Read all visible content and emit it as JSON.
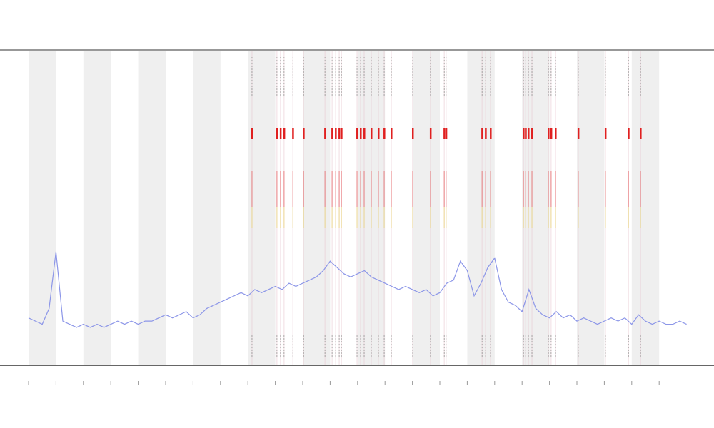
{
  "chart_data": {
    "type": "line",
    "x": [
      0,
      0.25,
      0.5,
      0.75,
      1,
      1.25,
      1.5,
      1.75,
      2,
      2.25,
      2.5,
      2.75,
      3,
      3.25,
      3.5,
      3.75,
      4,
      4.25,
      4.5,
      4.75,
      5,
      5.25,
      5.5,
      5.75,
      6,
      6.25,
      6.5,
      6.75,
      7,
      7.25,
      7.5,
      7.75,
      8,
      8.25,
      8.5,
      8.75,
      9,
      9.25,
      9.5,
      9.75,
      10,
      10.25,
      10.5,
      10.75,
      11,
      11.25,
      11.5,
      11.75,
      12,
      12.25,
      12.5,
      12.75,
      13,
      13.25,
      13.5,
      13.75,
      14,
      14.25,
      14.5,
      14.75,
      15,
      15.25,
      15.5,
      15.75,
      16,
      16.25,
      16.5,
      16.75,
      17,
      17.25,
      17.5,
      17.75,
      18,
      18.25,
      18.5,
      18.75,
      19,
      19.25,
      19.5,
      19.75,
      20,
      20.25,
      20.5,
      20.75,
      21,
      21.25,
      21.5,
      21.75,
      22,
      22.25,
      22.5,
      22.75,
      23,
      23.25,
      23.5,
      23.75,
      24
    ],
    "series": [
      {
        "color": "#8c96e8",
        "values": [
          15,
          14,
          13,
          18,
          36,
          14,
          13,
          12,
          13,
          12,
          13,
          12,
          13,
          14,
          13,
          14,
          13,
          14,
          14,
          15,
          16,
          15,
          16,
          17,
          15,
          16,
          18,
          19,
          20,
          21,
          22,
          23,
          22,
          24,
          23,
          24,
          25,
          24,
          26,
          25,
          26,
          27,
          28,
          30,
          33,
          31,
          29,
          28,
          29,
          30,
          28,
          27,
          26,
          25,
          24,
          25,
          24,
          23,
          24,
          22,
          23,
          26,
          27,
          33,
          30,
          22,
          26,
          31,
          34,
          24,
          20,
          19,
          17,
          24,
          18,
          16,
          15,
          17,
          15,
          16,
          14,
          15,
          14,
          13,
          14,
          15,
          14,
          15,
          13,
          16,
          14,
          13,
          14,
          13,
          13,
          14,
          13
        ]
      }
    ],
    "highlight_x": [
      8.15,
      9.06,
      9.19,
      9.32,
      9.64,
      10.03,
      10.81,
      11.07,
      11.2,
      11.33,
      11.41,
      11.98,
      12.11,
      12.24,
      12.5,
      12.76,
      12.97,
      13.23,
      14.01,
      14.66,
      15.16,
      15.23,
      16.54,
      16.67,
      16.85,
      18.05,
      18.13,
      18.23,
      18.36,
      18.96,
      19.06,
      19.22,
      20.05,
      21.04,
      21.88,
      22.32
    ],
    "highlight_color": "#e02020",
    "xlim": [
      0,
      24
    ],
    "ylim": [
      0,
      100
    ],
    "xticks": [
      0,
      1,
      2,
      3,
      4,
      5,
      6,
      7,
      8,
      9,
      10,
      11,
      12,
      13,
      14,
      15,
      16,
      17,
      18,
      19,
      20,
      21,
      22,
      23
    ],
    "band_color": "#efefef"
  }
}
